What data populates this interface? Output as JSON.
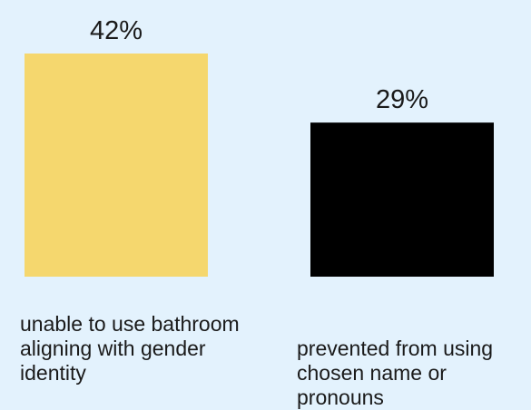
{
  "chart_data": {
    "type": "bar",
    "categories": [
      "unable to use bathroom aligning with gender identity",
      "prevented from using chosen name or pronouns"
    ],
    "values": [
      42,
      29
    ],
    "value_labels": [
      "42%",
      "29%"
    ],
    "colors": [
      "#f5d76e",
      "#000000"
    ],
    "ylim": [
      0,
      42
    ],
    "title": "",
    "xlabel": "",
    "ylabel": "",
    "grid": false,
    "legend": "none"
  }
}
